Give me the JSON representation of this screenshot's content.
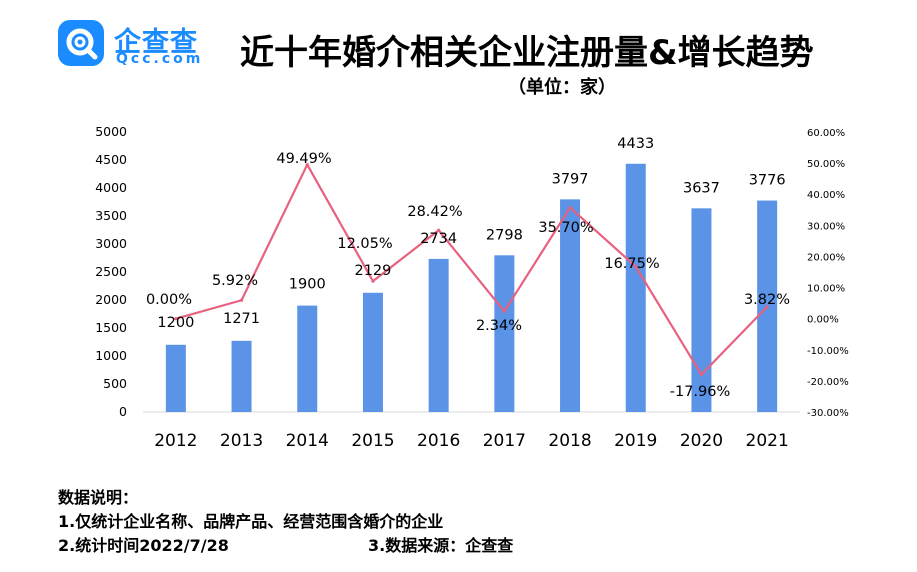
{
  "logo": {
    "cn": "企查查",
    "en": "Qcc.com"
  },
  "title": "近十年婚介相关企业注册量&增长趋势",
  "subtitle": "（单位：家）",
  "notes": {
    "heading": "数据说明：",
    "line1": "1.仅统计企业名称、品牌产品、经营范围含婚介的企业",
    "line2": "2.统计时间2022/7/28",
    "line3": "3.数据来源：企查查"
  },
  "colors": {
    "bar": "#5b93e6",
    "line": "#e8617f",
    "brand": "#1a8cff"
  },
  "chart_data": {
    "type": "bar",
    "categories": [
      "2012",
      "2013",
      "2014",
      "2015",
      "2016",
      "2017",
      "2018",
      "2019",
      "2020",
      "2021"
    ],
    "values": [
      1200,
      1271,
      1900,
      2129,
      2734,
      2798,
      3797,
      4433,
      3637,
      3776
    ],
    "value_labels": [
      "1200",
      "1271",
      "1900",
      "2129",
      "2734",
      "2798",
      "3797",
      "4433",
      "3637",
      "3776"
    ],
    "ylim": [
      0,
      5000
    ],
    "yticks": [
      "0",
      "500",
      "1000",
      "1500",
      "2000",
      "2500",
      "3000",
      "3500",
      "4000",
      "4500",
      "5000"
    ],
    "growth": {
      "type": "line",
      "values": [
        0.0,
        5.92,
        49.49,
        12.05,
        28.42,
        2.34,
        35.7,
        16.75,
        -17.96,
        3.82
      ],
      "labels": [
        "0.00%",
        "5.92%",
        "49.49%",
        "12.05%",
        "28.42%",
        "2.34%",
        "35.70%",
        "16.75%",
        "-17.96%",
        "3.82%"
      ],
      "ylim": [
        -30,
        60
      ],
      "yticks": [
        "-30.00%",
        "-20.00%",
        "-10.00%",
        "0.00%",
        "10.00%",
        "20.00%",
        "30.00%",
        "40.00%",
        "50.00%",
        "60.00%"
      ]
    },
    "grid": false,
    "legend": "none"
  }
}
